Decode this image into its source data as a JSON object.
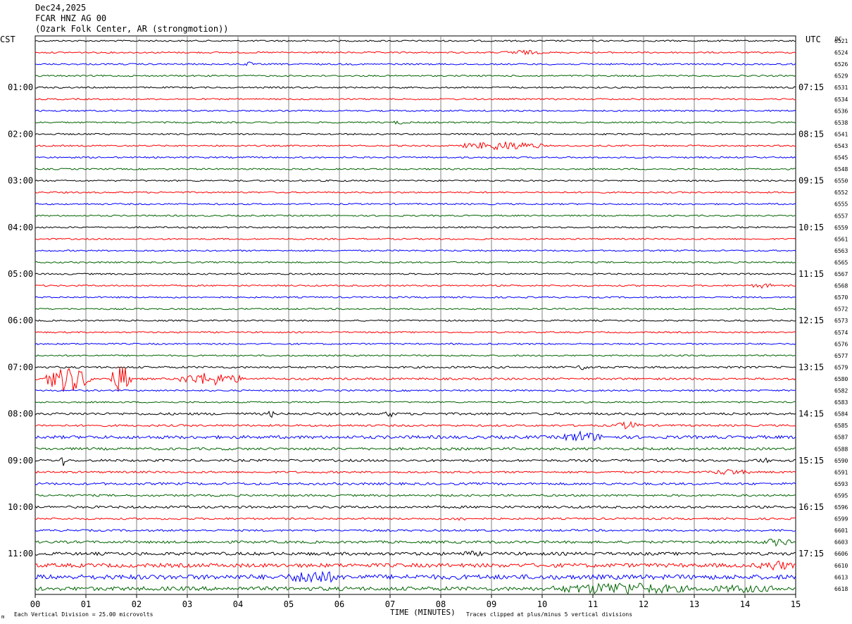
{
  "header": {
    "date": "Dec24,2025",
    "station": "FCAR HNZ AG 00",
    "location": "(Ozark Folk Center, AR (strongmotion))"
  },
  "labels": {
    "left_timezone": "CST",
    "right_timezone": "UTC",
    "dc_header": "DC",
    "x_axis_title": "TIME (MINUTES)",
    "scale_note": "Each Vertical Division =   25.00 microvolts",
    "clip_note": "Traces clipped at plus/minus 5 vertical divisions",
    "corner_mark": "m"
  },
  "colors": {
    "traces": [
      "#000000",
      "#ff0000",
      "#0000ff",
      "#006400"
    ],
    "grid": "#808080"
  },
  "chart_data": {
    "type": "line",
    "title": "FCAR HNZ AG 00",
    "xlabel": "TIME (MINUTES)",
    "x_ticks": [
      "00",
      "01",
      "02",
      "03",
      "04",
      "05",
      "06",
      "07",
      "08",
      "09",
      "10",
      "11",
      "12",
      "13",
      "14",
      "15"
    ],
    "xlim": [
      0,
      15
    ],
    "rows_per_hour": 4,
    "row_minutes": 15,
    "left_time_labels": [
      "01:00",
      "02:00",
      "03:00",
      "04:00",
      "05:00",
      "06:00",
      "07:00",
      "08:00",
      "09:00",
      "10:00",
      "11:00"
    ],
    "right_time_labels": [
      "07:15",
      "08:15",
      "09:15",
      "10:15",
      "11:15",
      "12:15",
      "13:15",
      "14:15",
      "15:15",
      "16:15",
      "17:15"
    ],
    "dc_offsets": [
      "6521",
      "6524",
      "6526",
      "6529",
      "6531",
      "6534",
      "6536",
      "6538",
      "6541",
      "6543",
      "6545",
      "6548",
      "6550",
      "6552",
      "6555",
      "6557",
      "6559",
      "6561",
      "6563",
      "6565",
      "6567",
      "6568",
      "6570",
      "6572",
      "6573",
      "6574",
      "6576",
      "6577",
      "6579",
      "6580",
      "6582",
      "6583",
      "6584",
      "6585",
      "6587",
      "6588",
      "6590",
      "6591",
      "6593",
      "6595",
      "6596",
      "6599",
      "6601",
      "6603",
      "6606",
      "6610",
      "6613",
      "6618"
    ],
    "noise_levels": [
      1,
      1,
      1,
      1,
      1,
      1,
      1,
      1,
      1,
      1,
      1,
      1,
      1,
      1,
      1,
      1,
      1,
      1,
      1,
      1,
      1,
      1,
      1,
      1,
      1,
      1,
      1,
      1,
      1.3,
      1.3,
      1,
      1,
      1.5,
      1.3,
      2,
      1.6,
      1.5,
      1.3,
      1.5,
      1.3,
      1.5,
      1.2,
      1.3,
      1.6,
      2,
      2.5,
      3,
      2.5
    ],
    "events": [
      {
        "row": 1,
        "start": 9.2,
        "end": 10.0,
        "amp": 4
      },
      {
        "row": 2,
        "start": 4.1,
        "end": 4.3,
        "amp": 4
      },
      {
        "row": 7,
        "start": 7.0,
        "end": 7.4,
        "amp": 3
      },
      {
        "row": 9,
        "start": 8.4,
        "end": 10.0,
        "amp": 7
      },
      {
        "row": 21,
        "start": 14.1,
        "end": 14.6,
        "amp": 4
      },
      {
        "row": 28,
        "start": 10.7,
        "end": 11.0,
        "amp": 5
      },
      {
        "row": 29,
        "start": 0.2,
        "end": 1.1,
        "amp": 20
      },
      {
        "row": 29,
        "start": 1.5,
        "end": 1.9,
        "amp": 22
      },
      {
        "row": 29,
        "start": 2.8,
        "end": 4.1,
        "amp": 10
      },
      {
        "row": 32,
        "start": 4.6,
        "end": 4.7,
        "amp": 7
      },
      {
        "row": 32,
        "start": 6.9,
        "end": 7.1,
        "amp": 7
      },
      {
        "row": 33,
        "start": 11.4,
        "end": 12.0,
        "amp": 6
      },
      {
        "row": 34,
        "start": 10.4,
        "end": 11.2,
        "amp": 9
      },
      {
        "row": 36,
        "start": 0.5,
        "end": 0.6,
        "amp": 9
      },
      {
        "row": 36,
        "start": 14.2,
        "end": 14.5,
        "amp": 5
      },
      {
        "row": 37,
        "start": 13.3,
        "end": 14.1,
        "amp": 5
      },
      {
        "row": 41,
        "start": 8.2,
        "end": 8.5,
        "amp": 4
      },
      {
        "row": 43,
        "start": 14.3,
        "end": 15.0,
        "amp": 6
      },
      {
        "row": 44,
        "start": 8.2,
        "end": 9.0,
        "amp": 4
      },
      {
        "row": 45,
        "start": 14.2,
        "end": 15.0,
        "amp": 8
      },
      {
        "row": 46,
        "start": 5.0,
        "end": 6.0,
        "amp": 12
      },
      {
        "row": 47,
        "start": 10.2,
        "end": 12.9,
        "amp": 10
      },
      {
        "row": 47,
        "start": 12.9,
        "end": 15.0,
        "amp": 6
      }
    ]
  }
}
